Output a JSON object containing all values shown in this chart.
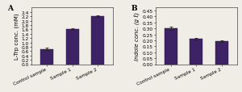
{
  "panel_a": {
    "categories": [
      "Control sample",
      "Sample 1",
      "Sample 2"
    ],
    "values": [
      0.7,
      1.6,
      2.2
    ],
    "errors": [
      0.05,
      0.04,
      0.04
    ],
    "ylabel": "L-Trp conc. (mM)",
    "ylim": [
      0,
      2.6
    ],
    "yticks": [
      0,
      0.2,
      0.4,
      0.6,
      0.8,
      1.0,
      1.2,
      1.4,
      1.6,
      1.8,
      2.0,
      2.2,
      2.4
    ],
    "label": "A"
  },
  "panel_b": {
    "categories": [
      "Control sample",
      "Sample 1",
      "Sample 2"
    ],
    "values": [
      0.3,
      0.21,
      0.195
    ],
    "errors": [
      0.015,
      0.012,
      0.008
    ],
    "ylabel": "Indole conc. (g ℓ)",
    "ylim": [
      0,
      0.475
    ],
    "yticks": [
      0,
      0.05,
      0.1,
      0.15,
      0.2,
      0.25,
      0.3,
      0.35,
      0.4,
      0.45
    ],
    "label": "B"
  },
  "bar_color": "#3d2265",
  "edge_color": "#2a1545",
  "bg_color": "#f0ede6",
  "fig_bg": "#f0ede6",
  "fontsize_ylabel": 5.0,
  "fontsize_tick": 4.2,
  "fontsize_panel": 6.5,
  "fontsize_xtick": 4.2
}
